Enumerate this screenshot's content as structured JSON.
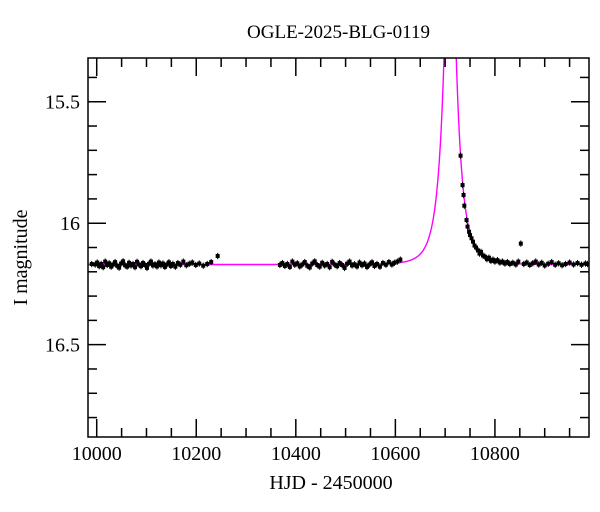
{
  "chart_data": {
    "type": "scatter",
    "title": "OGLE-2025-BLG-0119",
    "xlabel": "HJD - 2450000",
    "ylabel": "I magnitude",
    "grid": false,
    "legend": null,
    "x_range": [
      9982.5,
      10989
    ],
    "y_range": [
      15.32,
      16.88
    ],
    "y_axis_inverted": true,
    "x_major_ticks": [
      10000,
      10200,
      10400,
      10600,
      10800
    ],
    "x_major_tick_labels": [
      "10000",
      "10200",
      "10400",
      "10600",
      "10800"
    ],
    "x_major_step": 200,
    "x_minor_step": 50,
    "y_major_ticks": [
      15.5,
      16.0,
      16.5
    ],
    "y_major_tick_labels": [
      "15.5",
      "16",
      "16.5"
    ],
    "y_major_step": 0.5,
    "y_minor_step": 0.1,
    "frame_color": "#000000",
    "point_color": "#000000",
    "point_error_mag": 0.013,
    "marker": "filled-square",
    "marker_size": 4,
    "model_curve": {
      "type": "paczynski_microlensing",
      "t0": 10710,
      "tE": 26.3,
      "u0": 0.168,
      "baseline_mag": 16.17,
      "color": "#ff00ff"
    },
    "points": [
      [
        9990,
        16.168
      ],
      [
        9997,
        16.17
      ],
      [
        10001,
        16.162
      ],
      [
        10005,
        16.177
      ],
      [
        10009,
        16.168
      ],
      [
        10013,
        16.181
      ],
      [
        10017,
        16.158
      ],
      [
        10021,
        16.172
      ],
      [
        10025,
        16.165
      ],
      [
        10029,
        16.179
      ],
      [
        10033,
        16.17
      ],
      [
        10037,
        16.16
      ],
      [
        10041,
        16.175
      ],
      [
        10045,
        16.183
      ],
      [
        10049,
        16.166
      ],
      [
        10053,
        16.157
      ],
      [
        10057,
        16.173
      ],
      [
        10061,
        16.179
      ],
      [
        10065,
        16.163
      ],
      [
        10069,
        16.174
      ],
      [
        10073,
        16.168
      ],
      [
        10077,
        16.181
      ],
      [
        10081,
        16.159
      ],
      [
        10085,
        16.17
      ],
      [
        10089,
        16.177
      ],
      [
        10093,
        16.164
      ],
      [
        10097,
        16.172
      ],
      [
        10101,
        16.184
      ],
      [
        10105,
        16.167
      ],
      [
        10109,
        16.158
      ],
      [
        10113,
        16.174
      ],
      [
        10117,
        16.169
      ],
      [
        10121,
        16.178
      ],
      [
        10125,
        16.162
      ],
      [
        10129,
        16.173
      ],
      [
        10133,
        16.166
      ],
      [
        10137,
        16.18
      ],
      [
        10141,
        16.17
      ],
      [
        10145,
        16.161
      ],
      [
        10149,
        16.176
      ],
      [
        10153,
        16.168
      ],
      [
        10158,
        16.179
      ],
      [
        10163,
        16.164
      ],
      [
        10168,
        16.171
      ],
      [
        10174,
        16.158
      ],
      [
        10180,
        16.173
      ],
      [
        10186,
        16.167
      ],
      [
        10192,
        16.162
      ],
      [
        10199,
        16.172
      ],
      [
        10206,
        16.166
      ],
      [
        10214,
        16.175
      ],
      [
        10222,
        16.168
      ],
      [
        10230,
        16.16
      ],
      [
        10243,
        16.135
      ],
      [
        10368,
        16.172
      ],
      [
        10373,
        16.164
      ],
      [
        10378,
        16.176
      ],
      [
        10383,
        16.168
      ],
      [
        10388,
        16.18
      ],
      [
        10393,
        16.158
      ],
      [
        10398,
        16.171
      ],
      [
        10403,
        16.165
      ],
      [
        10408,
        16.178
      ],
      [
        10413,
        16.17
      ],
      [
        10418,
        16.16
      ],
      [
        10423,
        16.175
      ],
      [
        10428,
        16.182
      ],
      [
        10433,
        16.166
      ],
      [
        10438,
        16.157
      ],
      [
        10443,
        16.172
      ],
      [
        10448,
        16.179
      ],
      [
        10453,
        16.163
      ],
      [
        10458,
        16.174
      ],
      [
        10463,
        16.168
      ],
      [
        10468,
        16.181
      ],
      [
        10473,
        16.159
      ],
      [
        10478,
        16.17
      ],
      [
        10483,
        16.177
      ],
      [
        10488,
        16.164
      ],
      [
        10493,
        16.172
      ],
      [
        10498,
        16.184
      ],
      [
        10503,
        16.167
      ],
      [
        10508,
        16.158
      ],
      [
        10513,
        16.174
      ],
      [
        10518,
        16.169
      ],
      [
        10523,
        16.178
      ],
      [
        10528,
        16.162
      ],
      [
        10533,
        16.173
      ],
      [
        10538,
        16.166
      ],
      [
        10543,
        16.18
      ],
      [
        10548,
        16.17
      ],
      [
        10553,
        16.161
      ],
      [
        10558,
        16.176
      ],
      [
        10563,
        16.168
      ],
      [
        10569,
        16.179
      ],
      [
        10575,
        16.164
      ],
      [
        10581,
        16.171
      ],
      [
        10587,
        16.16
      ],
      [
        10593,
        16.17
      ],
      [
        10598,
        16.163
      ],
      [
        10604,
        16.158
      ],
      [
        10610,
        16.15
      ],
      [
        10731,
        15.722
      ],
      [
        10735,
        15.843
      ],
      [
        10737,
        15.884
      ],
      [
        10738.5,
        15.928
      ],
      [
        10743,
        15.987
      ],
      [
        10745,
        16.014
      ],
      [
        10748,
        16.035
      ],
      [
        10750,
        16.049
      ],
      [
        10753,
        16.062
      ],
      [
        10756,
        16.076
      ],
      [
        10759,
        16.092
      ],
      [
        10762,
        16.1
      ],
      [
        10766,
        16.112
      ],
      [
        10769,
        16.125
      ],
      [
        10772,
        16.118
      ],
      [
        10776,
        16.133
      ],
      [
        10780,
        16.138
      ],
      [
        10784,
        16.148
      ],
      [
        10788,
        16.142
      ],
      [
        10792,
        16.155
      ],
      [
        10796,
        16.15
      ],
      [
        10800,
        16.158
      ],
      [
        10805,
        16.152
      ],
      [
        10810,
        16.162
      ],
      [
        10815,
        16.158
      ],
      [
        10820,
        16.166
      ],
      [
        10825,
        16.16
      ],
      [
        10830,
        16.168
      ],
      [
        10836,
        16.163
      ],
      [
        10842,
        16.17
      ],
      [
        10847,
        16.158
      ],
      [
        10852,
        16.084
      ],
      [
        10858,
        16.168
      ],
      [
        10864,
        16.162
      ],
      [
        10870,
        16.172
      ],
      [
        10876,
        16.165
      ],
      [
        10882,
        16.158
      ],
      [
        10888,
        16.17
      ],
      [
        10894,
        16.163
      ],
      [
        10900,
        16.174
      ],
      [
        10907,
        16.167
      ],
      [
        10914,
        16.16
      ],
      [
        10921,
        16.171
      ],
      [
        10928,
        16.165
      ],
      [
        10935,
        16.173
      ],
      [
        10942,
        16.168
      ],
      [
        10950,
        16.162
      ],
      [
        10958,
        16.17
      ],
      [
        10966,
        16.164
      ],
      [
        10974,
        16.171
      ],
      [
        10982,
        16.166
      ],
      [
        10986,
        16.168
      ]
    ]
  }
}
